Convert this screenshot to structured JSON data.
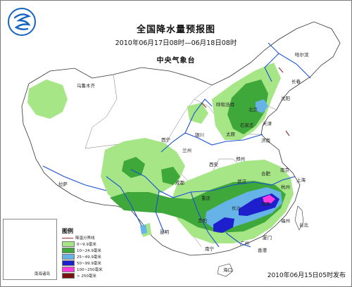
{
  "title": "全国降水量预报图",
  "subtitle": "2010年06月17日08时—06月18日08时",
  "agency": "中央气象台",
  "release_time": "2010年06月15日05时发布",
  "legend": {
    "title": "图例",
    "items": [
      {
        "label": "降温分界线",
        "color": "#8b3a2a",
        "kind": "line"
      },
      {
        "label": "0~9.9毫米",
        "color": "#a6e687",
        "kind": "fill"
      },
      {
        "label": "10~24.9毫米",
        "color": "#3fa83a",
        "kind": "fill"
      },
      {
        "label": "25~49.9毫米",
        "color": "#66b3e8",
        "kind": "fill"
      },
      {
        "label": "50~99.9毫米",
        "color": "#1d1fcc",
        "kind": "fill"
      },
      {
        "label": "100~250毫米",
        "color": "#ff3ce0",
        "kind": "fill"
      },
      {
        "label": "> 250毫米",
        "color": "#7a1111",
        "kind": "fill"
      }
    ]
  },
  "inset_label": "南海诸岛",
  "cities": {
    "harbin": "哈尔滨",
    "changchun": "长春",
    "shenyang": "沈阳",
    "urumqi": "乌鲁木齐",
    "hohhot": "呼和浩特",
    "beijing": "北京",
    "tianjin": "天津",
    "shijiazhuang": "石家庄",
    "taiyuan": "太原",
    "jinan": "济南",
    "yinchuan": "银川",
    "xining": "西宁",
    "lanzhou": "兰州",
    "xian": "西安",
    "zhengzhou": "郑州",
    "lhasa": "拉萨",
    "chengdu": "成都",
    "chongqing": "重庆",
    "wuhan": "武汉",
    "hefei": "合肥",
    "nanjing": "南京",
    "shanghai": "上海",
    "hangzhou": "杭州",
    "changsha": "长沙",
    "nanchang": "南昌",
    "fuzhou": "福州",
    "guiyang": "贵阳",
    "kunming": "昆明",
    "nanning": "南宁",
    "guangzhou": "广州",
    "hongkong": "香港",
    "xiamen": "厦门",
    "taipei": "台北",
    "haikou": "海口"
  }
}
